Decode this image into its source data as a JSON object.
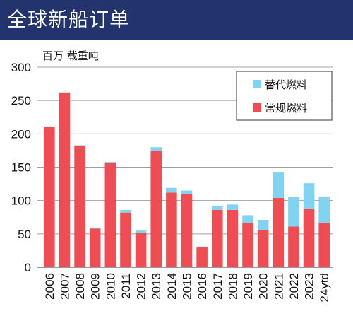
{
  "header": {
    "title": "全球新船订单"
  },
  "colors": {
    "header_bg": "#23336e",
    "conventional": "#ef4c53",
    "alternative": "#82d3f0"
  },
  "chart_data": {
    "type": "bar",
    "stacked": true,
    "title": "全球新船订单",
    "ylabel": "百万 载重吨",
    "ylim": [
      0,
      300
    ],
    "yticks": [
      0,
      50,
      100,
      150,
      200,
      250,
      300
    ],
    "grid": true,
    "legend_position": "top-right",
    "categories": [
      "2006",
      "2007",
      "2008",
      "2009",
      "2010",
      "2011",
      "2012",
      "2013",
      "2014",
      "2015",
      "2016",
      "2017",
      "2018",
      "2019",
      "2020",
      "2021",
      "2022",
      "2023",
      "24ytd"
    ],
    "series": [
      {
        "name": "常规燃料",
        "color": "#ef4c53",
        "values": [
          211,
          262,
          182,
          58,
          157,
          82,
          51,
          174,
          112,
          110,
          30,
          86,
          86,
          66,
          56,
          104,
          61,
          88,
          67
        ]
      },
      {
        "name": "替代燃料",
        "color": "#82d3f0",
        "values": [
          0,
          0,
          1,
          1,
          1,
          4,
          4,
          6,
          7,
          5,
          1,
          6,
          8,
          12,
          15,
          38,
          45,
          38,
          39
        ]
      }
    ],
    "legend_order": [
      "替代燃料",
      "常规燃料"
    ]
  }
}
